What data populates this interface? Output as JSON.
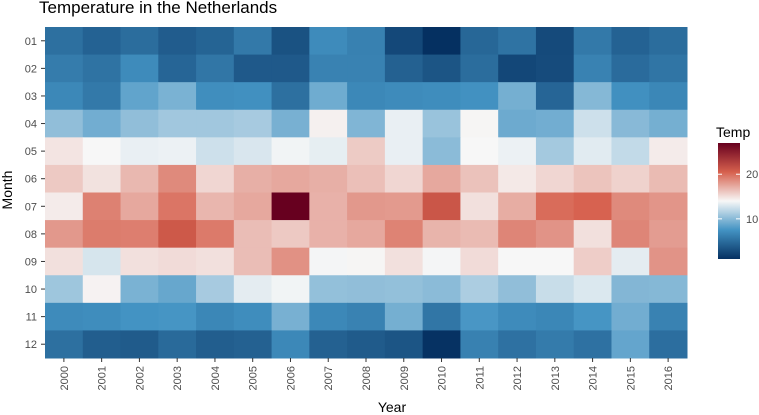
{
  "chart_data": {
    "type": "heatmap",
    "title": "Temperature in the Netherlands",
    "xlabel": "Year",
    "ylabel": "Month",
    "x": [
      "2000",
      "2001",
      "2002",
      "2003",
      "2004",
      "2005",
      "2006",
      "2007",
      "2008",
      "2009",
      "2010",
      "2011",
      "2012",
      "2013",
      "2014",
      "2015",
      "2016"
    ],
    "y": [
      "01",
      "02",
      "03",
      "04",
      "05",
      "06",
      "07",
      "08",
      "09",
      "10",
      "11",
      "12"
    ],
    "values": [
      [
        5.2,
        4.3,
        5.0,
        3.9,
        4.4,
        5.8,
        3.2,
        7.0,
        6.3,
        2.6,
        0.9,
        4.6,
        5.4,
        2.7,
        5.8,
        4.3,
        5.0
      ],
      [
        6.0,
        5.4,
        7.0,
        4.5,
        5.6,
        3.7,
        3.7,
        6.4,
        6.4,
        4.2,
        3.4,
        5.0,
        2.5,
        2.8,
        6.4,
        4.9,
        5.5
      ],
      [
        6.8,
        5.8,
        8.6,
        9.5,
        7.2,
        7.3,
        5.2,
        9.1,
        6.8,
        7.0,
        7.1,
        7.4,
        9.3,
        4.5,
        9.9,
        7.3,
        6.7
      ],
      [
        10.3,
        9.2,
        10.3,
        10.9,
        10.9,
        11.1,
        9.4,
        14.3,
        9.7,
        13.5,
        10.6,
        14.1,
        9.0,
        9.2,
        12.5,
        10.0,
        9.3
      ],
      [
        14.8,
        14.0,
        13.5,
        13.6,
        12.5,
        12.9,
        13.8,
        13.4,
        15.9,
        13.5,
        10.1,
        14.0,
        13.6,
        11.0,
        13.2,
        12.1,
        14.5
      ],
      [
        16.0,
        14.9,
        16.7,
        18.7,
        15.4,
        17.1,
        17.4,
        17.1,
        16.4,
        15.4,
        17.4,
        16.3,
        14.6,
        15.4,
        16.2,
        15.6,
        16.6
      ],
      [
        14.5,
        19.1,
        17.4,
        19.6,
        16.8,
        17.4,
        27.0,
        17.0,
        18.1,
        18.0,
        21.2,
        15.0,
        17.2,
        20.0,
        20.4,
        18.7,
        18.2
      ],
      [
        18.1,
        19.3,
        19.2,
        21.0,
        19.4,
        16.5,
        16.0,
        17.0,
        17.4,
        19.0,
        16.9,
        16.6,
        18.9,
        18.3,
        15.0,
        18.9,
        17.9
      ],
      [
        15.0,
        12.8,
        15.0,
        15.2,
        15.0,
        16.5,
        18.4,
        13.9,
        14.1,
        15.0,
        13.9,
        15.2,
        14.0,
        14.0,
        15.8,
        13.3,
        18.3
      ],
      [
        10.8,
        14.2,
        9.5,
        8.8,
        11.1,
        13.3,
        13.8,
        10.4,
        10.3,
        10.4,
        10.1,
        11.3,
        10.3,
        12.3,
        13.0,
        9.8,
        9.9
      ],
      [
        7.0,
        7.1,
        7.5,
        7.6,
        6.7,
        7.1,
        9.4,
        6.8,
        6.4,
        9.3,
        5.6,
        7.7,
        7.0,
        6.7,
        7.6,
        9.2,
        6.4
      ],
      [
        5.2,
        4.0,
        3.8,
        4.8,
        4.0,
        4.2,
        6.8,
        4.2,
        3.8,
        3.4,
        1.1,
        6.3,
        5.3,
        5.9,
        5.3,
        8.7,
        5.1
      ]
    ],
    "legend": {
      "title": "Temp",
      "ticks": [
        10,
        20
      ],
      "range": [
        1,
        27
      ],
      "position": "right"
    },
    "colors": {
      "low": "#053061",
      "mid_low": "#4393c3",
      "mid": "#f7f7f7",
      "mid_high": "#d6604d",
      "high": "#67001f"
    }
  }
}
